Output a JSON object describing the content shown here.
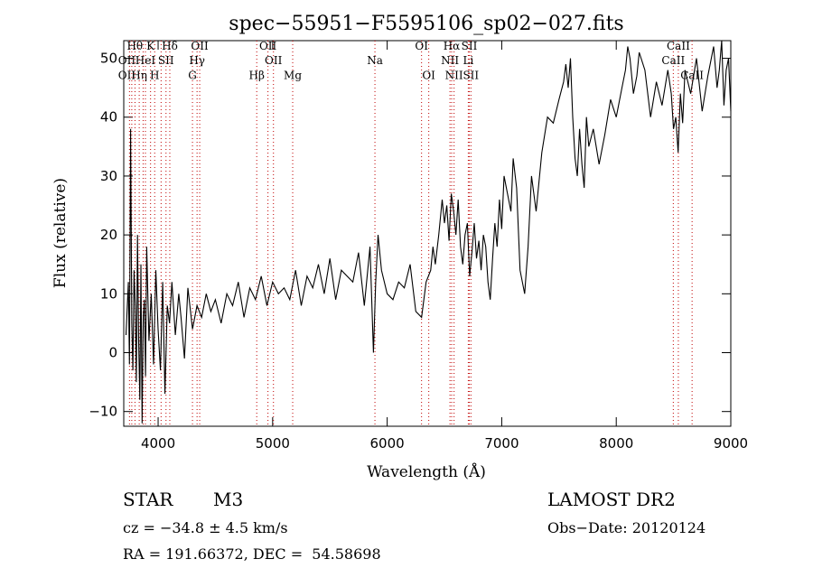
{
  "chart_data": {
    "type": "line",
    "title": "spec−55951−F5595106_sp02−027.fits",
    "xlabel": "Wavelength (Å)",
    "ylabel": "Flux (relative)",
    "xlim": [
      3700,
      9000
    ],
    "ylim": [
      -12.5,
      53
    ],
    "x_ticks": [
      4000,
      5000,
      6000,
      7000,
      8000,
      9000
    ],
    "y_ticks": [
      -10,
      0,
      10,
      20,
      30,
      40,
      50
    ],
    "grid": false,
    "series": [
      {
        "x": [
          3720,
          3740,
          3750,
          3760,
          3770,
          3780,
          3790,
          3800,
          3810,
          3820,
          3830,
          3840,
          3850,
          3860,
          3870,
          3880,
          3890,
          3900,
          3920,
          3940,
          3960,
          3980,
          4000,
          4020,
          4040,
          4060,
          4080,
          4100,
          4120,
          4150,
          4180,
          4200,
          4230,
          4260,
          4300,
          4340,
          4380,
          4420,
          4460,
          4500,
          4550,
          4600,
          4650,
          4700,
          4750,
          4800,
          4850,
          4900,
          4950,
          5000,
          5050,
          5100,
          5150,
          5200,
          5250,
          5300,
          5350,
          5400,
          5450,
          5500,
          5550,
          5600,
          5650,
          5700,
          5750,
          5800,
          5850,
          5880,
          5900,
          5920,
          5950,
          6000,
          6050,
          6100,
          6150,
          6200,
          6250,
          6300,
          6340,
          6380,
          6400,
          6420,
          6450,
          6480,
          6500,
          6520,
          6540,
          6560,
          6580,
          6600,
          6620,
          6640,
          6660,
          6680,
          6700,
          6720,
          6740,
          6760,
          6780,
          6800,
          6820,
          6840,
          6860,
          6880,
          6900,
          6920,
          6940,
          6960,
          6980,
          7000,
          7020,
          7050,
          7080,
          7100,
          7130,
          7160,
          7200,
          7230,
          7260,
          7300,
          7350,
          7400,
          7450,
          7500,
          7540,
          7560,
          7580,
          7600,
          7620,
          7640,
          7660,
          7680,
          7700,
          7720,
          7740,
          7760,
          7800,
          7850,
          7900,
          7950,
          8000,
          8050,
          8080,
          8100,
          8120,
          8150,
          8180,
          8200,
          8250,
          8300,
          8350,
          8400,
          8450,
          8480,
          8500,
          8520,
          8540,
          8560,
          8580,
          8600,
          8650,
          8700,
          8750,
          8800,
          8850,
          8880,
          8900,
          8920,
          8940,
          8960,
          8980,
          9000
        ],
        "y": [
          3,
          12,
          -2,
          38,
          5,
          -3,
          14,
          8,
          -5,
          20,
          2,
          -8,
          15,
          -12,
          6,
          9,
          -4,
          18,
          2,
          10,
          -2,
          14,
          4,
          -3,
          12,
          -7,
          8,
          5,
          12,
          3,
          10,
          6,
          -1,
          11,
          4,
          8,
          6,
          10,
          7,
          9,
          5,
          10,
          8,
          12,
          6,
          11,
          9,
          13,
          8,
          12,
          10,
          11,
          9,
          14,
          8,
          13,
          11,
          15,
          10,
          16,
          9,
          14,
          13,
          12,
          17,
          8,
          18,
          0,
          12,
          20,
          14,
          10,
          9,
          12,
          11,
          15,
          7,
          6,
          12,
          14,
          18,
          15,
          20,
          26,
          22,
          25,
          19,
          27,
          24,
          20,
          26,
          18,
          15,
          20,
          22,
          13,
          17,
          22,
          16,
          19,
          14,
          20,
          18,
          12,
          9,
          16,
          22,
          18,
          26,
          21,
          30,
          27,
          24,
          33,
          28,
          14,
          10,
          18,
          30,
          24,
          34,
          40,
          39,
          43,
          46,
          49,
          45,
          50,
          40,
          33,
          30,
          38,
          32,
          28,
          40,
          35,
          38,
          32,
          37,
          43,
          40,
          45,
          48,
          52,
          50,
          44,
          47,
          51,
          48,
          40,
          46,
          42,
          48,
          44,
          38,
          40,
          34,
          44,
          39,
          48,
          44,
          50,
          41,
          47,
          52,
          45,
          48,
          53,
          42,
          48,
          50,
          41
        ],
        "color": "#000000"
      }
    ],
    "lines": [
      {
        "x": 3750
      },
      {
        "x": 3770
      },
      {
        "x": 3798
      },
      {
        "x": 3835
      },
      {
        "x": 3869
      },
      {
        "x": 3889
      },
      {
        "x": 3934
      },
      {
        "x": 3970
      },
      {
        "x": 4026
      },
      {
        "x": 4069
      },
      {
        "x": 4102
      },
      {
        "x": 4300
      },
      {
        "x": 4340
      },
      {
        "x": 4363
      },
      {
        "x": 4861
      },
      {
        "x": 4959
      },
      {
        "x": 5007
      },
      {
        "x": 5175
      },
      {
        "x": 5893
      },
      {
        "x": 6300
      },
      {
        "x": 6363
      },
      {
        "x": 6548
      },
      {
        "x": 6563
      },
      {
        "x": 6584
      },
      {
        "x": 6708
      },
      {
        "x": 6717
      },
      {
        "x": 6731
      },
      {
        "x": 8498
      },
      {
        "x": 8542
      },
      {
        "x": 8662
      }
    ],
    "annotations": [
      {
        "text": "Hθ",
        "x": 3797,
        "y": 51.5
      },
      {
        "text": "K",
        "x": 3934,
        "y": 51.5
      },
      {
        "text": "Hδ",
        "x": 4102,
        "y": 51.5
      },
      {
        "text": "OII",
        "x": 4363,
        "y": 51.5
      },
      {
        "text": "OII",
        "x": 4959,
        "y": 51.5
      },
      {
        "text": "OI",
        "x": 6300,
        "y": 51.5
      },
      {
        "text": "Hα",
        "x": 6563,
        "y": 51.5
      },
      {
        "text": "SII",
        "x": 6717,
        "y": 51.5
      },
      {
        "text": "CaII",
        "x": 8542,
        "y": 51.5
      },
      {
        "text": "OII",
        "x": 3727,
        "y": 49.0
      },
      {
        "text": "HeI",
        "x": 3889,
        "y": 49.0
      },
      {
        "text": "SII",
        "x": 4069,
        "y": 49.0
      },
      {
        "text": "Hγ",
        "x": 4340,
        "y": 49.0
      },
      {
        "text": "OII",
        "x": 5007,
        "y": 49.0
      },
      {
        "text": "Na",
        "x": 5893,
        "y": 49.0
      },
      {
        "text": "NII",
        "x": 6548,
        "y": 49.0
      },
      {
        "text": "Li",
        "x": 6708,
        "y": 49.0
      },
      {
        "text": "CaII",
        "x": 8498,
        "y": 49.0
      },
      {
        "text": "OII",
        "x": 3727,
        "y": 46.5
      },
      {
        "text": "Hη",
        "x": 3835,
        "y": 46.5
      },
      {
        "text": "H",
        "x": 3970,
        "y": 46.5
      },
      {
        "text": "G",
        "x": 4300,
        "y": 46.5
      },
      {
        "text": "Hβ",
        "x": 4861,
        "y": 46.5
      },
      {
        "text": "Mg",
        "x": 5175,
        "y": 46.5
      },
      {
        "text": "OI",
        "x": 6363,
        "y": 46.5
      },
      {
        "text": "NII",
        "x": 6584,
        "y": 46.5
      },
      {
        "text": "SII",
        "x": 6731,
        "y": 46.5
      },
      {
        "text": "CaII",
        "x": 8662,
        "y": 46.5
      }
    ]
  },
  "info": {
    "object_type": "STAR",
    "subclass": "M3",
    "survey": "LAMOST DR2",
    "cz": "cz = −34.8 ± 4.5 km/s",
    "obs_date": "Obs−Date: 20120124",
    "coords": "RA = 191.66372, DEC =  54.58698"
  }
}
